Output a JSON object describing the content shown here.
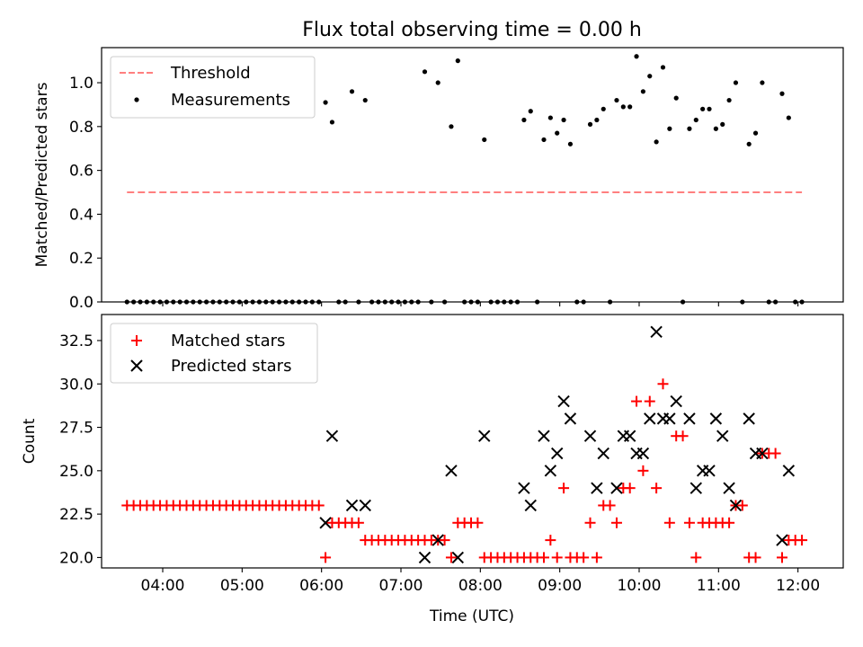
{
  "title": "Flux total observing time = 0.00 h",
  "top": {
    "ylabel": "Matched/Predicted stars",
    "ylim": [
      0.0,
      1.16
    ],
    "yticks": [
      0.0,
      0.2,
      0.4,
      0.6,
      0.8,
      1.0
    ],
    "ytick_labels": [
      "0.0",
      "0.2",
      "0.4",
      "0.6",
      "0.8",
      "1.0"
    ],
    "legend": {
      "threshold": "Threshold",
      "measurements": "Measurements"
    }
  },
  "bottom": {
    "xlabel": "Time (UTC)",
    "ylabel": "Count",
    "ylim": [
      19.4,
      34.0
    ],
    "yticks": [
      20.0,
      22.5,
      25.0,
      27.5,
      30.0,
      32.5
    ],
    "ytick_labels": [
      "20.0",
      "22.5",
      "25.0",
      "27.5",
      "30.0",
      "32.5"
    ],
    "legend": {
      "matched": "Matched stars",
      "predicted": "Predicted stars"
    }
  },
  "xaxis": {
    "xlim_hours": [
      3.23,
      12.57
    ],
    "ticks_hours": [
      4,
      5,
      6,
      7,
      8,
      9,
      10,
      11,
      12
    ],
    "tick_labels": [
      "04:00",
      "05:00",
      "06:00",
      "07:00",
      "08:00",
      "09:00",
      "10:00",
      "11:00",
      "12:00"
    ]
  },
  "colors": {
    "threshold": "#ff7f7f",
    "measurement": "#000000",
    "matched": "#ff0000",
    "predicted": "#000000"
  },
  "chart_data": [
    {
      "type": "scatter",
      "title": "Flux total observing time = 0.00 h",
      "ylabel": "Matched/Predicted stars",
      "ylim": [
        0.0,
        1.16
      ],
      "threshold": {
        "name": "Threshold",
        "y": 0.5,
        "x_range": [
          "03:33",
          "12:03"
        ],
        "style": "dashed"
      },
      "series": [
        {
          "name": "Measurements",
          "points": [
            [
              "03:33",
              0
            ],
            [
              "03:38",
              0
            ],
            [
              "03:43",
              0
            ],
            [
              "03:48",
              0
            ],
            [
              "03:53",
              0
            ],
            [
              "03:58",
              0
            ],
            [
              "04:03",
              0
            ],
            [
              "04:08",
              0
            ],
            [
              "04:13",
              0
            ],
            [
              "04:18",
              0
            ],
            [
              "04:23",
              0
            ],
            [
              "04:28",
              0
            ],
            [
              "04:33",
              0
            ],
            [
              "04:38",
              0
            ],
            [
              "04:43",
              0
            ],
            [
              "04:48",
              0
            ],
            [
              "04:53",
              0
            ],
            [
              "04:58",
              0
            ],
            [
              "05:03",
              0
            ],
            [
              "05:08",
              0
            ],
            [
              "05:13",
              0
            ],
            [
              "05:18",
              0
            ],
            [
              "05:23",
              0
            ],
            [
              "05:28",
              0
            ],
            [
              "05:33",
              0
            ],
            [
              "05:38",
              0
            ],
            [
              "05:43",
              0
            ],
            [
              "05:48",
              0
            ],
            [
              "05:53",
              0
            ],
            [
              "05:58",
              0
            ],
            [
              "06:03",
              0.91
            ],
            [
              "06:08",
              0.82
            ],
            [
              "06:13",
              0
            ],
            [
              "06:18",
              0
            ],
            [
              "06:23",
              0.96
            ],
            [
              "06:28",
              0
            ],
            [
              "06:33",
              0.92
            ],
            [
              "06:38",
              0
            ],
            [
              "06:43",
              0
            ],
            [
              "06:48",
              0
            ],
            [
              "06:53",
              0
            ],
            [
              "06:58",
              0
            ],
            [
              "07:03",
              0
            ],
            [
              "07:08",
              0
            ],
            [
              "07:13",
              0
            ],
            [
              "07:18",
              1.05
            ],
            [
              "07:23",
              0
            ],
            [
              "07:28",
              1.0
            ],
            [
              "07:33",
              0
            ],
            [
              "07:38",
              0.8
            ],
            [
              "07:43",
              1.1
            ],
            [
              "07:48",
              0
            ],
            [
              "07:53",
              0
            ],
            [
              "07:58",
              0
            ],
            [
              "08:03",
              0.74
            ],
            [
              "08:08",
              0
            ],
            [
              "08:13",
              0
            ],
            [
              "08:18",
              0
            ],
            [
              "08:23",
              0
            ],
            [
              "08:28",
              0
            ],
            [
              "08:33",
              0.83
            ],
            [
              "08:38",
              0.87
            ],
            [
              "08:43",
              0
            ],
            [
              "08:48",
              0.74
            ],
            [
              "08:53",
              0.84
            ],
            [
              "08:58",
              0.77
            ],
            [
              "09:03",
              0.83
            ],
            [
              "09:08",
              0.72
            ],
            [
              "09:13",
              0
            ],
            [
              "09:18",
              0
            ],
            [
              "09:23",
              0.81
            ],
            [
              "09:28",
              0.83
            ],
            [
              "09:33",
              0.88
            ],
            [
              "09:38",
              0
            ],
            [
              "09:43",
              0.92
            ],
            [
              "09:48",
              0.89
            ],
            [
              "09:53",
              0.89
            ],
            [
              "09:58",
              1.12
            ],
            [
              "10:03",
              0.96
            ],
            [
              "10:08",
              1.03
            ],
            [
              "10:13",
              0.73
            ],
            [
              "10:18",
              1.07
            ],
            [
              "10:23",
              0.79
            ],
            [
              "10:28",
              0.93
            ],
            [
              "10:33",
              0
            ],
            [
              "10:38",
              0.79
            ],
            [
              "10:43",
              0.83
            ],
            [
              "10:48",
              0.88
            ],
            [
              "10:53",
              0.88
            ],
            [
              "10:58",
              0.79
            ],
            [
              "11:03",
              0.81
            ],
            [
              "11:08",
              0.92
            ],
            [
              "11:13",
              1.0
            ],
            [
              "11:18",
              0
            ],
            [
              "11:23",
              0.72
            ],
            [
              "11:28",
              0.77
            ],
            [
              "11:33",
              1.0
            ],
            [
              "11:38",
              0
            ],
            [
              "11:43",
              0
            ],
            [
              "11:48",
              0.95
            ],
            [
              "11:53",
              0.84
            ],
            [
              "11:58",
              0
            ],
            [
              "12:03",
              0
            ]
          ]
        }
      ]
    },
    {
      "type": "scatter",
      "xlabel": "Time (UTC)",
      "ylabel": "Count",
      "ylim": [
        19.4,
        34.0
      ],
      "series": [
        {
          "name": "Matched stars",
          "marker": "plus",
          "points": [
            [
              "03:33",
              23
            ],
            [
              "03:38",
              23
            ],
            [
              "03:43",
              23
            ],
            [
              "03:48",
              23
            ],
            [
              "03:53",
              23
            ],
            [
              "03:58",
              23
            ],
            [
              "04:03",
              23
            ],
            [
              "04:08",
              23
            ],
            [
              "04:13",
              23
            ],
            [
              "04:18",
              23
            ],
            [
              "04:23",
              23
            ],
            [
              "04:28",
              23
            ],
            [
              "04:33",
              23
            ],
            [
              "04:38",
              23
            ],
            [
              "04:43",
              23
            ],
            [
              "04:48",
              23
            ],
            [
              "04:53",
              23
            ],
            [
              "04:58",
              23
            ],
            [
              "05:03",
              23
            ],
            [
              "05:08",
              23
            ],
            [
              "05:13",
              23
            ],
            [
              "05:18",
              23
            ],
            [
              "05:23",
              23
            ],
            [
              "05:28",
              23
            ],
            [
              "05:33",
              23
            ],
            [
              "05:38",
              23
            ],
            [
              "05:43",
              23
            ],
            [
              "05:48",
              23
            ],
            [
              "05:53",
              23
            ],
            [
              "05:58",
              23
            ],
            [
              "06:03",
              20
            ],
            [
              "06:08",
              22
            ],
            [
              "06:13",
              22
            ],
            [
              "06:18",
              22
            ],
            [
              "06:23",
              22
            ],
            [
              "06:28",
              22
            ],
            [
              "06:33",
              21
            ],
            [
              "06:38",
              21
            ],
            [
              "06:43",
              21
            ],
            [
              "06:48",
              21
            ],
            [
              "06:53",
              21
            ],
            [
              "06:58",
              21
            ],
            [
              "07:03",
              21
            ],
            [
              "07:08",
              21
            ],
            [
              "07:13",
              21
            ],
            [
              "07:18",
              21
            ],
            [
              "07:23",
              21
            ],
            [
              "07:28",
              21
            ],
            [
              "07:33",
              21
            ],
            [
              "07:38",
              20
            ],
            [
              "07:43",
              22
            ],
            [
              "07:48",
              22
            ],
            [
              "07:53",
              22
            ],
            [
              "07:58",
              22
            ],
            [
              "08:03",
              20
            ],
            [
              "08:08",
              20
            ],
            [
              "08:13",
              20
            ],
            [
              "08:18",
              20
            ],
            [
              "08:23",
              20
            ],
            [
              "08:28",
              20
            ],
            [
              "08:33",
              20
            ],
            [
              "08:38",
              20
            ],
            [
              "08:43",
              20
            ],
            [
              "08:48",
              20
            ],
            [
              "08:53",
              21
            ],
            [
              "08:58",
              20
            ],
            [
              "09:03",
              24
            ],
            [
              "09:08",
              20
            ],
            [
              "09:13",
              20
            ],
            [
              "09:18",
              20
            ],
            [
              "09:23",
              22
            ],
            [
              "09:28",
              20
            ],
            [
              "09:33",
              23
            ],
            [
              "09:38",
              23
            ],
            [
              "09:43",
              22
            ],
            [
              "09:48",
              24
            ],
            [
              "09:53",
              24
            ],
            [
              "09:58",
              29
            ],
            [
              "10:03",
              25
            ],
            [
              "10:08",
              29
            ],
            [
              "10:13",
              24
            ],
            [
              "10:18",
              30
            ],
            [
              "10:23",
              22
            ],
            [
              "10:28",
              27
            ],
            [
              "10:33",
              27
            ],
            [
              "10:38",
              22
            ],
            [
              "10:43",
              20
            ],
            [
              "10:48",
              22
            ],
            [
              "10:53",
              22
            ],
            [
              "10:58",
              22
            ],
            [
              "11:03",
              22
            ],
            [
              "11:08",
              22
            ],
            [
              "11:13",
              23
            ],
            [
              "11:18",
              23
            ],
            [
              "11:23",
              20
            ],
            [
              "11:28",
              20
            ],
            [
              "11:33",
              26
            ],
            [
              "11:38",
              26
            ],
            [
              "11:43",
              26
            ],
            [
              "11:48",
              20
            ],
            [
              "11:53",
              21
            ],
            [
              "11:58",
              21
            ],
            [
              "12:03",
              21
            ]
          ]
        },
        {
          "name": "Predicted stars",
          "marker": "x",
          "points": [
            [
              "06:03",
              22
            ],
            [
              "06:08",
              27
            ],
            [
              "06:23",
              23
            ],
            [
              "06:33",
              23
            ],
            [
              "07:18",
              20
            ],
            [
              "07:28",
              21
            ],
            [
              "07:38",
              25
            ],
            [
              "07:43",
              20
            ],
            [
              "08:03",
              27
            ],
            [
              "08:33",
              24
            ],
            [
              "08:38",
              23
            ],
            [
              "08:48",
              27
            ],
            [
              "08:53",
              25
            ],
            [
              "08:58",
              26
            ],
            [
              "09:03",
              29
            ],
            [
              "09:08",
              28
            ],
            [
              "09:23",
              27
            ],
            [
              "09:28",
              24
            ],
            [
              "09:33",
              26
            ],
            [
              "09:43",
              24
            ],
            [
              "09:48",
              27
            ],
            [
              "09:53",
              27
            ],
            [
              "09:58",
              26
            ],
            [
              "10:03",
              26
            ],
            [
              "10:08",
              28
            ],
            [
              "10:13",
              33
            ],
            [
              "10:18",
              28
            ],
            [
              "10:23",
              28
            ],
            [
              "10:28",
              29
            ],
            [
              "10:38",
              28
            ],
            [
              "10:43",
              24
            ],
            [
              "10:48",
              25
            ],
            [
              "10:53",
              25
            ],
            [
              "10:58",
              28
            ],
            [
              "11:03",
              27
            ],
            [
              "11:08",
              24
            ],
            [
              "11:13",
              23
            ],
            [
              "11:23",
              28
            ],
            [
              "11:28",
              26
            ],
            [
              "11:33",
              26
            ],
            [
              "11:48",
              21
            ],
            [
              "11:53",
              25
            ]
          ]
        }
      ]
    }
  ]
}
